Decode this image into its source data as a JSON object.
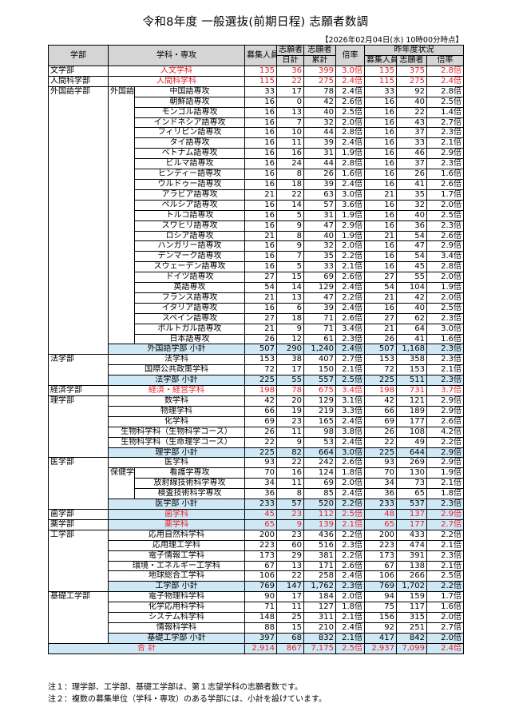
{
  "title": "令和8年度 一般選抜(前期日程) 志願者数調",
  "as_of": "【2026年02月04日(水) 10時00分時点】",
  "headers": {
    "dept": "学部",
    "major": "学科・専攻",
    "quota": "募集人員",
    "applicants_day_1": "志願者",
    "applicants_day_2": "日計",
    "applicants_cum_1": "志願者",
    "applicants_cum_2": "累計",
    "ratio": "倍率",
    "last_year": "昨年度状況",
    "ly_quota": "募集人員",
    "ly_applicants": "志願者",
    "ly_ratio": "倍率"
  },
  "rows": [
    {
      "dept": "文学部",
      "sub": "",
      "major": "人文学科",
      "q": "135",
      "d": "36",
      "c": "399",
      "r": "3.0倍",
      "lq": "135",
      "la": "375",
      "lr": "2.8倍",
      "style": "red"
    },
    {
      "dept": "人間科学部",
      "sub": "",
      "major": "人間科学科",
      "q": "115",
      "d": "22",
      "c": "275",
      "r": "2.4倍",
      "lq": "115",
      "la": "275",
      "lr": "2.4倍",
      "style": "red"
    },
    {
      "dept": "外国語学部",
      "sub": "外国語学科",
      "major": "中国語専攻",
      "q": "33",
      "d": "17",
      "c": "78",
      "r": "2.4倍",
      "lq": "33",
      "la": "92",
      "lr": "2.8倍"
    },
    {
      "dept": "",
      "sub": "",
      "major": "朝鮮語専攻",
      "q": "16",
      "d": "0",
      "c": "42",
      "r": "2.6倍",
      "lq": "16",
      "la": "40",
      "lr": "2.5倍"
    },
    {
      "dept": "",
      "sub": "",
      "major": "モンゴル語専攻",
      "q": "16",
      "d": "13",
      "c": "40",
      "r": "2.5倍",
      "lq": "16",
      "la": "22",
      "lr": "1.4倍"
    },
    {
      "dept": "",
      "sub": "",
      "major": "インドネシア語専攻",
      "q": "16",
      "d": "7",
      "c": "32",
      "r": "2.0倍",
      "lq": "16",
      "la": "43",
      "lr": "2.7倍"
    },
    {
      "dept": "",
      "sub": "",
      "major": "フィリピン語専攻",
      "q": "16",
      "d": "10",
      "c": "44",
      "r": "2.8倍",
      "lq": "16",
      "la": "37",
      "lr": "2.3倍"
    },
    {
      "dept": "",
      "sub": "",
      "major": "タイ語専攻",
      "q": "16",
      "d": "11",
      "c": "39",
      "r": "2.4倍",
      "lq": "16",
      "la": "33",
      "lr": "2.1倍"
    },
    {
      "dept": "",
      "sub": "",
      "major": "ベトナム語専攻",
      "q": "16",
      "d": "16",
      "c": "31",
      "r": "1.9倍",
      "lq": "16",
      "la": "46",
      "lr": "2.9倍"
    },
    {
      "dept": "",
      "sub": "",
      "major": "ビルマ語専攻",
      "q": "16",
      "d": "24",
      "c": "44",
      "r": "2.8倍",
      "lq": "16",
      "la": "37",
      "lr": "2.3倍"
    },
    {
      "dept": "",
      "sub": "",
      "major": "ヒンディー語専攻",
      "q": "16",
      "d": "8",
      "c": "26",
      "r": "1.6倍",
      "lq": "16",
      "la": "26",
      "lr": "1.6倍"
    },
    {
      "dept": "",
      "sub": "",
      "major": "ウルドゥー語専攻",
      "q": "16",
      "d": "18",
      "c": "39",
      "r": "2.4倍",
      "lq": "16",
      "la": "41",
      "lr": "2.6倍"
    },
    {
      "dept": "",
      "sub": "",
      "major": "アラビア語専攻",
      "q": "21",
      "d": "22",
      "c": "63",
      "r": "3.0倍",
      "lq": "21",
      "la": "35",
      "lr": "1.7倍"
    },
    {
      "dept": "",
      "sub": "",
      "major": "ペルシア語専攻",
      "q": "16",
      "d": "14",
      "c": "57",
      "r": "3.6倍",
      "lq": "16",
      "la": "32",
      "lr": "2.0倍"
    },
    {
      "dept": "",
      "sub": "",
      "major": "トルコ語専攻",
      "q": "16",
      "d": "5",
      "c": "31",
      "r": "1.9倍",
      "lq": "16",
      "la": "40",
      "lr": "2.5倍"
    },
    {
      "dept": "",
      "sub": "",
      "major": "スワヒリ語専攻",
      "q": "16",
      "d": "9",
      "c": "47",
      "r": "2.9倍",
      "lq": "16",
      "la": "36",
      "lr": "2.3倍"
    },
    {
      "dept": "",
      "sub": "",
      "major": "ロシア語専攻",
      "q": "21",
      "d": "8",
      "c": "40",
      "r": "1.9倍",
      "lq": "21",
      "la": "54",
      "lr": "2.6倍"
    },
    {
      "dept": "",
      "sub": "",
      "major": "ハンガリー語専攻",
      "q": "16",
      "d": "9",
      "c": "32",
      "r": "2.0倍",
      "lq": "16",
      "la": "47",
      "lr": "2.9倍"
    },
    {
      "dept": "",
      "sub": "",
      "major": "デンマーク語専攻",
      "q": "16",
      "d": "7",
      "c": "35",
      "r": "2.2倍",
      "lq": "16",
      "la": "54",
      "lr": "3.4倍"
    },
    {
      "dept": "",
      "sub": "",
      "major": "スウェーデン語専攻",
      "q": "16",
      "d": "5",
      "c": "33",
      "r": "2.1倍",
      "lq": "16",
      "la": "45",
      "lr": "2.8倍"
    },
    {
      "dept": "",
      "sub": "",
      "major": "ドイツ語専攻",
      "q": "27",
      "d": "15",
      "c": "69",
      "r": "2.6倍",
      "lq": "27",
      "la": "55",
      "lr": "2.0倍"
    },
    {
      "dept": "",
      "sub": "",
      "major": "英語専攻",
      "q": "54",
      "d": "14",
      "c": "129",
      "r": "2.4倍",
      "lq": "54",
      "la": "104",
      "lr": "1.9倍"
    },
    {
      "dept": "",
      "sub": "",
      "major": "フランス語専攻",
      "q": "21",
      "d": "13",
      "c": "47",
      "r": "2.2倍",
      "lq": "21",
      "la": "42",
      "lr": "2.0倍"
    },
    {
      "dept": "",
      "sub": "",
      "major": "イタリア語専攻",
      "q": "16",
      "d": "6",
      "c": "39",
      "r": "2.4倍",
      "lq": "16",
      "la": "40",
      "lr": "2.5倍"
    },
    {
      "dept": "",
      "sub": "",
      "major": "スペイン語専攻",
      "q": "27",
      "d": "18",
      "c": "71",
      "r": "2.6倍",
      "lq": "27",
      "la": "62",
      "lr": "2.3倍"
    },
    {
      "dept": "",
      "sub": "",
      "major": "ポルトガル語専攻",
      "q": "21",
      "d": "9",
      "c": "71",
      "r": "3.4倍",
      "lq": "21",
      "la": "64",
      "lr": "3.0倍"
    },
    {
      "dept": "",
      "sub": "",
      "major": "日本語専攻",
      "q": "26",
      "d": "12",
      "c": "61",
      "r": "2.3倍",
      "lq": "26",
      "la": "41",
      "lr": "1.6倍"
    },
    {
      "dept": "",
      "sub": "",
      "major": "外国語学部 小計",
      "q": "507",
      "d": "290",
      "c": "1,240",
      "r": "2.4倍",
      "lq": "507",
      "la": "1,168",
      "lr": "2.3倍",
      "style": "subtotal",
      "end": true
    },
    {
      "dept": "法学部",
      "sub": "",
      "major": "法学科",
      "q": "153",
      "d": "38",
      "c": "407",
      "r": "2.7倍",
      "lq": "153",
      "la": "358",
      "lr": "2.3倍"
    },
    {
      "dept": "",
      "sub": "",
      "major": "国際公共政策学科",
      "q": "72",
      "d": "17",
      "c": "150",
      "r": "2.1倍",
      "lq": "72",
      "la": "153",
      "lr": "2.1倍"
    },
    {
      "dept": "",
      "sub": "",
      "major": "法学部 小計",
      "q": "225",
      "d": "55",
      "c": "557",
      "r": "2.5倍",
      "lq": "225",
      "la": "511",
      "lr": "2.3倍",
      "style": "subtotal",
      "end": true
    },
    {
      "dept": "経済学部",
      "sub": "",
      "major": "経済・経営学科",
      "q": "198",
      "d": "78",
      "c": "675",
      "r": "3.4倍",
      "lq": "198",
      "la": "731",
      "lr": "3.7倍",
      "style": "red"
    },
    {
      "dept": "理学部",
      "sub": "",
      "major": "数学科",
      "q": "42",
      "d": "20",
      "c": "129",
      "r": "3.1倍",
      "lq": "42",
      "la": "121",
      "lr": "2.9倍"
    },
    {
      "dept": "",
      "sub": "",
      "major": "物理学科",
      "q": "66",
      "d": "19",
      "c": "219",
      "r": "3.3倍",
      "lq": "66",
      "la": "189",
      "lr": "2.9倍"
    },
    {
      "dept": "",
      "sub": "",
      "major": "化学科",
      "q": "69",
      "d": "23",
      "c": "165",
      "r": "2.4倍",
      "lq": "69",
      "la": "177",
      "lr": "2.6倍"
    },
    {
      "dept": "",
      "sub": "",
      "major": "生物科学科（生物科学コース）",
      "q": "26",
      "d": "11",
      "c": "98",
      "r": "3.8倍",
      "lq": "26",
      "la": "108",
      "lr": "4.2倍"
    },
    {
      "dept": "",
      "sub": "",
      "major": "生物科学科（生命理学コース）",
      "q": "22",
      "d": "9",
      "c": "53",
      "r": "2.4倍",
      "lq": "22",
      "la": "49",
      "lr": "2.2倍"
    },
    {
      "dept": "",
      "sub": "",
      "major": "理学部 小計",
      "q": "225",
      "d": "82",
      "c": "664",
      "r": "3.0倍",
      "lq": "225",
      "la": "644",
      "lr": "2.9倍",
      "style": "subtotal",
      "end": true
    },
    {
      "dept": "医学部",
      "sub": "",
      "major": "医学科",
      "q": "93",
      "d": "22",
      "c": "242",
      "r": "2.6倍",
      "lq": "93",
      "la": "269",
      "lr": "2.9倍"
    },
    {
      "dept": "",
      "sub": "保健学科",
      "major": "看護学専攻",
      "q": "70",
      "d": "16",
      "c": "124",
      "r": "1.8倍",
      "lq": "70",
      "la": "130",
      "lr": "1.9倍"
    },
    {
      "dept": "",
      "sub": "",
      "major": "放射線技術科学専攻",
      "q": "34",
      "d": "11",
      "c": "69",
      "r": "2.0倍",
      "lq": "34",
      "la": "73",
      "lr": "2.1倍"
    },
    {
      "dept": "",
      "sub": "",
      "major": "検査技術科学専攻",
      "q": "36",
      "d": "8",
      "c": "85",
      "r": "2.4倍",
      "lq": "36",
      "la": "65",
      "lr": "1.8倍"
    },
    {
      "dept": "",
      "sub": "",
      "major": "医学部 小計",
      "q": "233",
      "d": "57",
      "c": "520",
      "r": "2.2倍",
      "lq": "233",
      "la": "537",
      "lr": "2.3倍",
      "style": "subtotal",
      "end": true
    },
    {
      "dept": "歯学部",
      "sub": "",
      "major": "歯学科",
      "q": "45",
      "d": "23",
      "c": "112",
      "r": "2.5倍",
      "lq": "48",
      "la": "137",
      "lr": "2.9倍",
      "style": "red hl"
    },
    {
      "dept": "薬学部",
      "sub": "",
      "major": "薬学科",
      "q": "65",
      "d": "9",
      "c": "139",
      "r": "2.1倍",
      "lq": "65",
      "la": "177",
      "lr": "2.7倍",
      "style": "red hl"
    },
    {
      "dept": "工学部",
      "sub": "",
      "major": "応用自然科学科",
      "q": "200",
      "d": "23",
      "c": "436",
      "r": "2.2倍",
      "lq": "200",
      "la": "433",
      "lr": "2.2倍"
    },
    {
      "dept": "",
      "sub": "",
      "major": "応用理工学科",
      "q": "223",
      "d": "60",
      "c": "516",
      "r": "2.3倍",
      "lq": "223",
      "la": "474",
      "lr": "2.1倍"
    },
    {
      "dept": "",
      "sub": "",
      "major": "電子情報工学科",
      "q": "173",
      "d": "29",
      "c": "381",
      "r": "2.2倍",
      "lq": "173",
      "la": "391",
      "lr": "2.3倍"
    },
    {
      "dept": "",
      "sub": "",
      "major": "環境・エネルギー工学科",
      "q": "67",
      "d": "13",
      "c": "171",
      "r": "2.6倍",
      "lq": "67",
      "la": "138",
      "lr": "2.1倍"
    },
    {
      "dept": "",
      "sub": "",
      "major": "地球総合工学科",
      "q": "106",
      "d": "22",
      "c": "258",
      "r": "2.4倍",
      "lq": "106",
      "la": "266",
      "lr": "2.5倍"
    },
    {
      "dept": "",
      "sub": "",
      "major": "工学部 小計",
      "q": "769",
      "d": "147",
      "c": "1,762",
      "r": "2.3倍",
      "lq": "769",
      "la": "1,702",
      "lr": "2.2倍",
      "style": "subtotal",
      "end": true
    },
    {
      "dept": "基礎工学部",
      "sub": "",
      "major": "電子物理科学科",
      "q": "90",
      "d": "17",
      "c": "184",
      "r": "2.0倍",
      "lq": "94",
      "la": "159",
      "lr": "1.7倍"
    },
    {
      "dept": "",
      "sub": "",
      "major": "化学応用科学科",
      "q": "71",
      "d": "11",
      "c": "127",
      "r": "1.8倍",
      "lq": "75",
      "la": "117",
      "lr": "1.6倍"
    },
    {
      "dept": "",
      "sub": "",
      "major": "システム科学科",
      "q": "148",
      "d": "25",
      "c": "311",
      "r": "2.1倍",
      "lq": "156",
      "la": "315",
      "lr": "2.0倍"
    },
    {
      "dept": "",
      "sub": "",
      "major": "情報科学科",
      "q": "88",
      "d": "15",
      "c": "210",
      "r": "2.4倍",
      "lq": "92",
      "la": "251",
      "lr": "2.7倍"
    },
    {
      "dept": "",
      "sub": "",
      "major": "基礎工学部 小計",
      "q": "397",
      "d": "68",
      "c": "832",
      "r": "2.1倍",
      "lq": "417",
      "la": "842",
      "lr": "2.0倍",
      "style": "subtotal",
      "end": true
    }
  ],
  "total": {
    "label": "合 計",
    "q": "2,914",
    "d": "867",
    "c": "7,175",
    "r": "2.5倍",
    "lq": "2,937",
    "la": "7,099",
    "lr": "2.4倍"
  },
  "notes": [
    "注１：理学部、工学部、基礎工学部は、第１志望学科の志願者数です。",
    "注２：複数の募集単位（学科・専攻）のある学部には、小計を設けています。"
  ]
}
